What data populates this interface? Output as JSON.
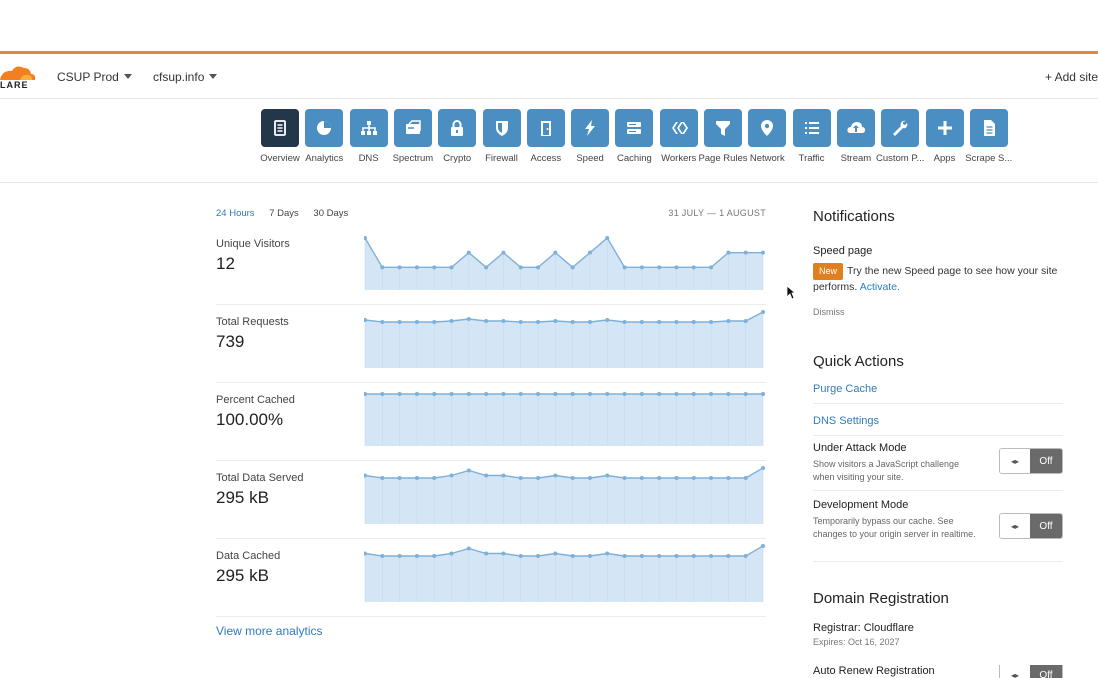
{
  "header": {
    "logo_text": "LARE",
    "account": "CSUP Prod",
    "domain": "cfsup.info",
    "add_site": "+ Add site"
  },
  "nav": [
    {
      "label": "Overview",
      "icon": "overview-icon",
      "active": true
    },
    {
      "label": "Analytics",
      "icon": "analytics-icon"
    },
    {
      "label": "DNS",
      "icon": "dns-icon"
    },
    {
      "label": "Spectrum",
      "icon": "spectrum-icon"
    },
    {
      "label": "Crypto",
      "icon": "lock-icon"
    },
    {
      "label": "Firewall",
      "icon": "shield-icon"
    },
    {
      "label": "Access",
      "icon": "door-icon"
    },
    {
      "label": "Speed",
      "icon": "lightning-icon"
    },
    {
      "label": "Caching",
      "icon": "server-icon"
    },
    {
      "label": "Workers",
      "icon": "workers-icon"
    },
    {
      "label": "Page Rules",
      "icon": "filter-icon"
    },
    {
      "label": "Network",
      "icon": "location-pin-icon"
    },
    {
      "label": "Traffic",
      "icon": "list-icon"
    },
    {
      "label": "Stream",
      "icon": "cloud-upload-icon"
    },
    {
      "label": "Custom P...",
      "icon": "wrench-icon"
    },
    {
      "label": "Apps",
      "icon": "plus-icon"
    },
    {
      "label": "Scrape S...",
      "icon": "document-icon"
    }
  ],
  "ranges": {
    "r24": "24 Hours",
    "r7": "7 Days",
    "r30": "30 Days",
    "date_range": "31 JULY — 1 AUGUST"
  },
  "metrics": [
    {
      "label": "Unique Visitors",
      "value": "12",
      "series": [
        3,
        1,
        1,
        1,
        1,
        1,
        2,
        1,
        2,
        1,
        1,
        2,
        1,
        2,
        3,
        1,
        1,
        1,
        1,
        1,
        1,
        2,
        2,
        2
      ]
    },
    {
      "label": "Total Requests",
      "value": "739",
      "series": [
        32,
        30,
        30,
        30,
        30,
        31,
        33,
        31,
        31,
        30,
        30,
        31,
        30,
        30,
        32,
        30,
        30,
        30,
        30,
        30,
        30,
        31,
        31,
        40
      ]
    },
    {
      "label": "Percent Cached",
      "value": "100.00%",
      "series": [
        100,
        100,
        100,
        100,
        100,
        100,
        100,
        100,
        100,
        100,
        100,
        100,
        100,
        100,
        100,
        100,
        100,
        100,
        100,
        100,
        100,
        100,
        100,
        100
      ]
    },
    {
      "label": "Total Data Served",
      "value": "295 kB",
      "series": [
        13,
        12,
        12,
        12,
        12,
        13,
        15,
        13,
        13,
        12,
        12,
        13,
        12,
        12,
        13,
        12,
        12,
        12,
        12,
        12,
        12,
        12,
        12,
        16
      ]
    },
    {
      "label": "Data Cached",
      "value": "295 kB",
      "series": [
        13,
        12,
        12,
        12,
        12,
        13,
        15,
        13,
        13,
        12,
        12,
        13,
        12,
        12,
        13,
        12,
        12,
        12,
        12,
        12,
        12,
        12,
        12,
        16
      ]
    }
  ],
  "view_more": "View more analytics",
  "notifications": {
    "title": "Notifications",
    "item_title": "Speed page",
    "badge": "New",
    "text": "Try the new Speed page to see how your site performs.",
    "activate": "Activate.",
    "dismiss": "Dismiss"
  },
  "quick_actions": {
    "title": "Quick Actions",
    "purge": "Purge Cache",
    "dns": "DNS Settings",
    "attack_title": "Under Attack Mode",
    "attack_desc": "Show visitors a JavaScript challenge when visiting your site.",
    "attack_state": "Off",
    "dev_title": "Development Mode",
    "dev_desc": "Temporarily bypass our cache. See changes to your origin server in realtime.",
    "dev_state": "Off",
    "knob": "◂▸"
  },
  "domain_reg": {
    "title": "Domain Registration",
    "registrar": "Registrar: Cloudflare",
    "expires": "Expires: Oct 16, 2027",
    "auto_renew": "Auto Renew Registration",
    "auto_state": "Off"
  },
  "colors": {
    "accent": "#4a8ec2",
    "active": "#24364a",
    "chart_fill": "#d4e6f6",
    "chart_line": "#7fb0d8",
    "orange": "#e2873d"
  }
}
